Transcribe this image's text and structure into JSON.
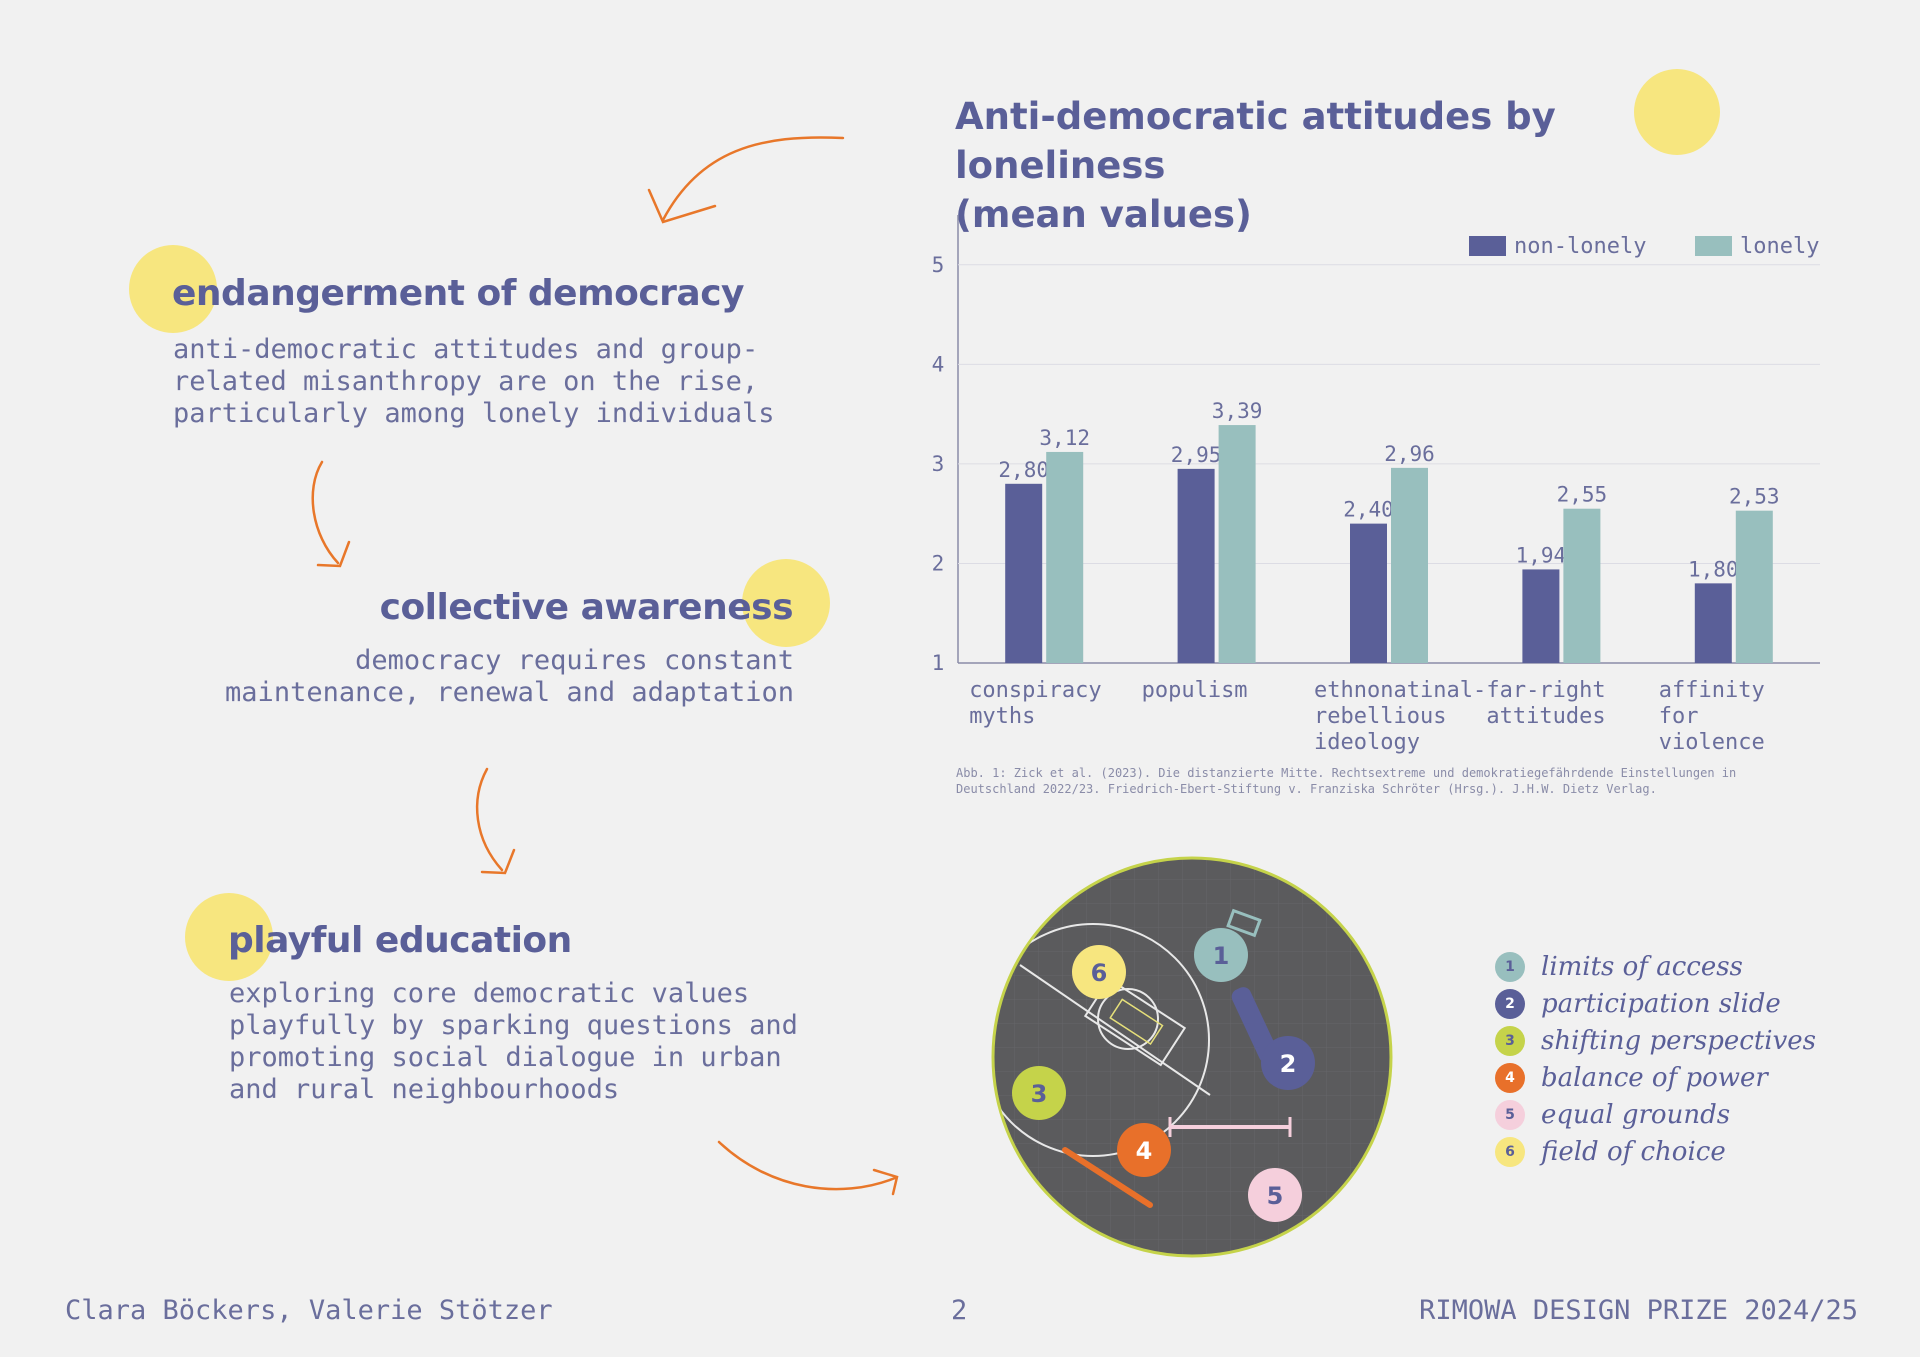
{
  "left": {
    "section1": {
      "title": "endangerment of democracy",
      "lines": [
        "anti-democratic attitudes and group-",
        "related misanthropy are on the rise,",
        "particularly among lonely individuals"
      ]
    },
    "section2": {
      "title": "collective awareness",
      "lines": [
        "democracy requires constant",
        "maintenance, renewal and adaptation"
      ]
    },
    "section3": {
      "title": "playful education",
      "lines": [
        "exploring core democratic values",
        "playfully by sparking questions and",
        "promoting social dialogue in urban",
        "and rural neighbourhoods"
      ]
    }
  },
  "chart_data": {
    "type": "bar",
    "title_lines": [
      "Anti-democratic attitudes by loneliness",
      "(mean values)"
    ],
    "categories": [
      [
        "conspiracy",
        "myths"
      ],
      [
        "populism"
      ],
      [
        "ethnonatinal-",
        "rebellious",
        "ideology"
      ],
      [
        "far-right",
        "attitudes"
      ],
      [
        "affinity",
        "for",
        "violence"
      ]
    ],
    "series": [
      {
        "name": "non-lonely",
        "color": "#5a5f98",
        "values": [
          2.8,
          2.95,
          2.4,
          1.94,
          1.8
        ],
        "labels": [
          "2,80",
          "2,95",
          "2,40",
          "1,94",
          "1,80"
        ]
      },
      {
        "name": "lonely",
        "color": "#98bfbe",
        "values": [
          3.12,
          3.39,
          2.96,
          2.55,
          2.53
        ],
        "labels": [
          "3,12",
          "3,39",
          "2,96",
          "2,55",
          "2,53"
        ]
      }
    ],
    "yticks": [
      "1",
      "2",
      "3",
      "4",
      "5"
    ],
    "ylim": [
      1,
      5.5
    ],
    "grid": true,
    "legend": "top-right",
    "source_lines": [
      "Abb. 1: Zick et al. (2023). Die distanzierte Mitte. Rechtsextreme und demokratiegefährdende Einstellungen in",
      "Deutschland 2022/23. Friedrich-Ebert-Stiftung v. Franziska Schröter (Hrsg.). J.H.W. Dietz Verlag."
    ]
  },
  "map_legend": [
    {
      "num": "1",
      "label": "limits of access",
      "color": "#98bfbe",
      "text_color": "#5a5f98"
    },
    {
      "num": "2",
      "label": "participation slide",
      "color": "#5a5f98",
      "text_color": "#ffffff"
    },
    {
      "num": "3",
      "label": "shifting perspectives",
      "color": "#c5d34a",
      "text_color": "#5a5f98"
    },
    {
      "num": "4",
      "label": "balance of power",
      "color": "#e8702a",
      "text_color": "#ffffff"
    },
    {
      "num": "5",
      "label": "equal grounds",
      "color": "#f5cfdc",
      "text_color": "#5a5f98"
    },
    {
      "num": "6",
      "label": "field of choice",
      "color": "#f7e67f",
      "text_color": "#5a5f98"
    }
  ],
  "footer": {
    "authors": "Clara Böckers, Valerie Stötzer",
    "page": "2",
    "prize": "RIMOWA DESIGN PRIZE 2024/25"
  }
}
